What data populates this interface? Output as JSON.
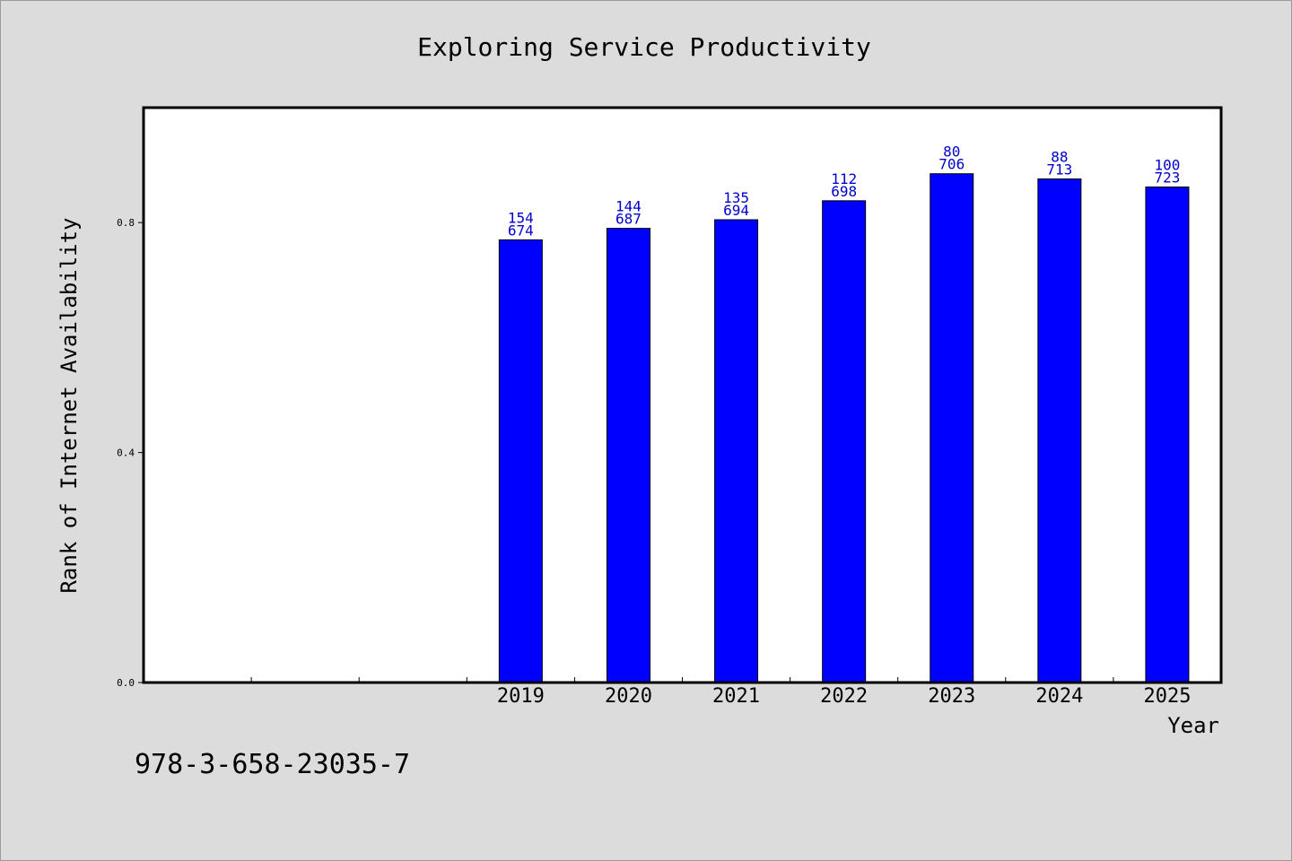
{
  "chart_data": {
    "type": "bar",
    "title": "Exploring Service Productivity",
    "xlabel": "Year",
    "ylabel": "Rank of Internet Availability",
    "ylim": [
      0,
      1.0
    ],
    "yticks": [
      "0.0",
      "0.4",
      "0.8"
    ],
    "categories": [
      "",
      "",
      "",
      "2019",
      "2020",
      "2021",
      "2022",
      "2023",
      "2024",
      "2025"
    ],
    "values": [
      null,
      null,
      null,
      0.77,
      0.79,
      0.805,
      0.838,
      0.885,
      0.876,
      0.862
    ],
    "labels_top": [
      "",
      "",
      "",
      "154",
      "144",
      "135",
      "112",
      "80",
      "88",
      "100"
    ],
    "labels_bottom": [
      "",
      "",
      "",
      "674",
      "687",
      "694",
      "698",
      "706",
      "713",
      "723"
    ],
    "bar_color": "#0000ff",
    "label_color": "#0000cc",
    "grid": false,
    "legend": "none"
  },
  "footer": {
    "isbn": "978-3-658-23035-7"
  }
}
